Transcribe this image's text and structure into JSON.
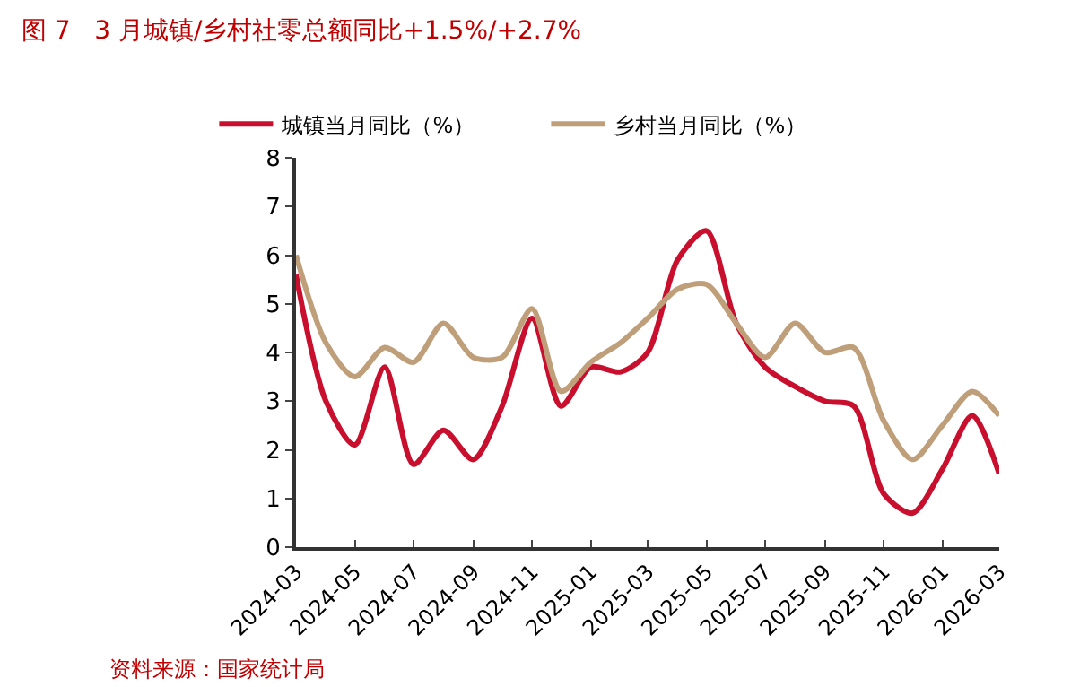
{
  "chart_data": {
    "type": "line",
    "title": "图 7   3 月城镇/乡村社零总额同比+1.5%/+2.7%",
    "x": [
      "2024-03",
      "2024-04",
      "2024-05",
      "2024-06",
      "2024-07",
      "2024-08",
      "2024-09",
      "2024-10",
      "2024-11",
      "2024-12",
      "2025-01",
      "2025-02",
      "2025-03",
      "2025-04",
      "2025-05",
      "2025-06",
      "2025-07",
      "2025-08",
      "2025-09",
      "2025-10",
      "2025-11",
      "2025-12",
      "2026-01",
      "2026-02",
      "2026-03"
    ],
    "series": [
      {
        "name": "城镇当月同比（%）",
        "color": "#c8102e",
        "values": [
          5.6,
          3.0,
          2.1,
          3.7,
          1.7,
          2.4,
          1.8,
          2.9,
          4.7,
          2.9,
          3.7,
          3.6,
          4.0,
          5.9,
          6.5,
          4.6,
          3.7,
          3.3,
          3.0,
          2.9,
          1.1,
          0.7,
          1.6,
          2.7,
          1.5
        ]
      },
      {
        "name": "乡村当月同比（%）",
        "color": "#bf9f7a",
        "values": [
          6.0,
          4.2,
          3.5,
          4.1,
          3.8,
          4.6,
          3.9,
          3.9,
          4.9,
          3.2,
          3.8,
          4.2,
          4.7,
          5.3,
          5.4,
          4.6,
          3.9,
          4.6,
          4.0,
          4.1,
          2.6,
          1.8,
          2.5,
          3.2,
          2.7
        ]
      }
    ],
    "xlim": [
      "2024-03",
      "2026-03"
    ],
    "xticks": [
      "2024-03",
      "2024-05",
      "2024-07",
      "2024-09",
      "2024-11",
      "2025-01",
      "2025-03",
      "2025-05",
      "2025-07",
      "2025-09",
      "2025-11",
      "2026-01",
      "2026-03"
    ],
    "ylim": [
      0,
      8
    ],
    "yticks": [
      0,
      1,
      2,
      3,
      4,
      5,
      6,
      7,
      8
    ],
    "legend": "top",
    "marker": "none",
    "line_style": "solid",
    "annotations": [
      "资料来源：国家统计局"
    ]
  }
}
